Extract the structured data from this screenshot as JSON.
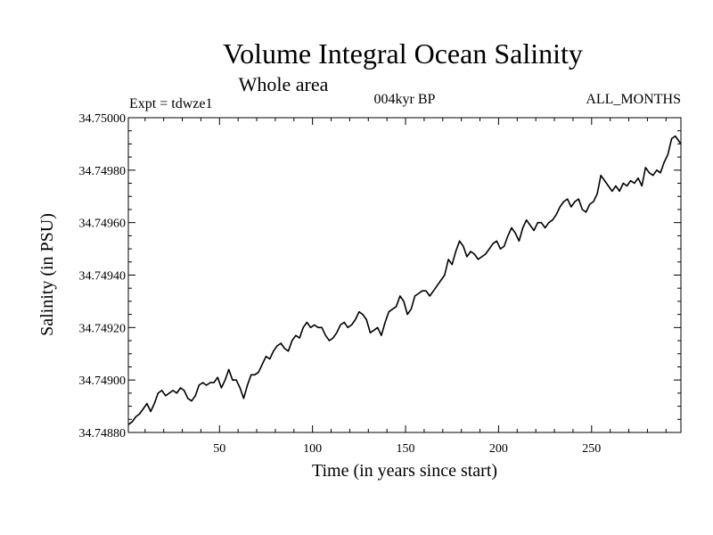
{
  "chart_data": {
    "type": "line",
    "title": "Volume Integral Ocean Salinity",
    "subtitle": "Whole area",
    "experiment": "Expt = tdwze1",
    "period": "004kyr BP",
    "months": "ALL_MONTHS",
    "xlabel": "Time (in years since start)",
    "ylabel": "Salinity (in PSU)",
    "xlim": [
      1,
      298
    ],
    "ylim": [
      34.7488,
      34.75
    ],
    "xticks": [
      50,
      100,
      150,
      200,
      250
    ],
    "xtick_labels": [
      "50",
      "100",
      "150",
      "200",
      "250"
    ],
    "yticks": [
      34.7488,
      34.749,
      34.7492,
      34.7494,
      34.7496,
      34.7498,
      34.75
    ],
    "ytick_labels": [
      "34.74880",
      "34.74900",
      "34.74920",
      "34.74940",
      "34.74960",
      "34.74980",
      "34.75000"
    ],
    "series": [
      {
        "name": "Salinity",
        "points": [
          [
            1,
            34.74883
          ],
          [
            3,
            34.74884
          ],
          [
            5,
            34.74886
          ],
          [
            7,
            34.74887
          ],
          [
            9,
            34.74889
          ],
          [
            11,
            34.74891
          ],
          [
            13,
            34.74888
          ],
          [
            15,
            34.74891
          ],
          [
            17,
            34.74895
          ],
          [
            19,
            34.74896
          ],
          [
            21,
            34.74894
          ],
          [
            23,
            34.74895
          ],
          [
            25,
            34.74896
          ],
          [
            27,
            34.74895
          ],
          [
            29,
            34.74897
          ],
          [
            31,
            34.74896
          ],
          [
            33,
            34.74893
          ],
          [
            35,
            34.74892
          ],
          [
            37,
            34.74894
          ],
          [
            39,
            34.74898
          ],
          [
            41,
            34.74899
          ],
          [
            43,
            34.74898
          ],
          [
            45,
            34.74899
          ],
          [
            47,
            34.74899
          ],
          [
            49,
            34.74901
          ],
          [
            51,
            34.74897
          ],
          [
            53,
            34.749
          ],
          [
            55,
            34.74904
          ],
          [
            57,
            34.749
          ],
          [
            59,
            34.749
          ],
          [
            61,
            34.74897
          ],
          [
            63,
            34.74893
          ],
          [
            65,
            34.74898
          ],
          [
            67,
            34.74902
          ],
          [
            69,
            34.74902
          ],
          [
            71,
            34.74903
          ],
          [
            73,
            34.74906
          ],
          [
            75,
            34.74909
          ],
          [
            77,
            34.74908
          ],
          [
            79,
            34.74911
          ],
          [
            81,
            34.74913
          ],
          [
            83,
            34.74914
          ],
          [
            85,
            34.74912
          ],
          [
            87,
            34.74911
          ],
          [
            89,
            34.74915
          ],
          [
            91,
            34.74917
          ],
          [
            93,
            34.74916
          ],
          [
            95,
            34.7492
          ],
          [
            97,
            34.74922
          ],
          [
            99,
            34.7492
          ],
          [
            101,
            34.74921
          ],
          [
            103,
            34.7492
          ],
          [
            105,
            34.7492
          ],
          [
            107,
            34.74917
          ],
          [
            109,
            34.74915
          ],
          [
            111,
            34.74916
          ],
          [
            113,
            34.74918
          ],
          [
            115,
            34.74921
          ],
          [
            117,
            34.74922
          ],
          [
            119,
            34.7492
          ],
          [
            121,
            34.74921
          ],
          [
            123,
            34.74923
          ],
          [
            125,
            34.74926
          ],
          [
            127,
            34.74925
          ],
          [
            129,
            34.74923
          ],
          [
            131,
            34.74918
          ],
          [
            133,
            34.74919
          ],
          [
            135,
            34.7492
          ],
          [
            137,
            34.74917
          ],
          [
            139,
            34.74922
          ],
          [
            141,
            34.74926
          ],
          [
            143,
            34.74927
          ],
          [
            145,
            34.74928
          ],
          [
            147,
            34.74932
          ],
          [
            149,
            34.7493
          ],
          [
            151,
            34.74925
          ],
          [
            153,
            34.74927
          ],
          [
            155,
            34.74932
          ],
          [
            157,
            34.74933
          ],
          [
            159,
            34.74934
          ],
          [
            161,
            34.74934
          ],
          [
            163,
            34.74932
          ],
          [
            165,
            34.74934
          ],
          [
            167,
            34.74936
          ],
          [
            169,
            34.74938
          ],
          [
            171,
            34.7494
          ],
          [
            173,
            34.74946
          ],
          [
            175,
            34.74944
          ],
          [
            177,
            34.74949
          ],
          [
            179,
            34.74953
          ],
          [
            181,
            34.74951
          ],
          [
            183,
            34.74947
          ],
          [
            185,
            34.74949
          ],
          [
            187,
            34.74948
          ],
          [
            189,
            34.74946
          ],
          [
            191,
            34.74947
          ],
          [
            193,
            34.74948
          ],
          [
            195,
            34.7495
          ],
          [
            197,
            34.74952
          ],
          [
            199,
            34.74953
          ],
          [
            201,
            34.7495
          ],
          [
            203,
            34.74951
          ],
          [
            205,
            34.74955
          ],
          [
            207,
            34.74958
          ],
          [
            209,
            34.74956
          ],
          [
            211,
            34.74953
          ],
          [
            213,
            34.74958
          ],
          [
            215,
            34.74961
          ],
          [
            217,
            34.74959
          ],
          [
            219,
            34.74957
          ],
          [
            221,
            34.7496
          ],
          [
            223,
            34.7496
          ],
          [
            225,
            34.74958
          ],
          [
            227,
            34.7496
          ],
          [
            229,
            34.74961
          ],
          [
            231,
            34.74963
          ],
          [
            233,
            34.74966
          ],
          [
            235,
            34.74968
          ],
          [
            237,
            34.74969
          ],
          [
            239,
            34.74966
          ],
          [
            241,
            34.74968
          ],
          [
            243,
            34.74969
          ],
          [
            245,
            34.74965
          ],
          [
            247,
            34.74964
          ],
          [
            249,
            34.74967
          ],
          [
            251,
            34.74968
          ],
          [
            253,
            34.74971
          ],
          [
            255,
            34.74978
          ],
          [
            257,
            34.74976
          ],
          [
            259,
            34.74974
          ],
          [
            261,
            34.74972
          ],
          [
            263,
            34.74974
          ],
          [
            265,
            34.74972
          ],
          [
            267,
            34.74975
          ],
          [
            269,
            34.74974
          ],
          [
            271,
            34.74976
          ],
          [
            273,
            34.74975
          ],
          [
            275,
            34.74977
          ],
          [
            277,
            34.74974
          ],
          [
            279,
            34.74981
          ],
          [
            281,
            34.74979
          ],
          [
            283,
            34.74978
          ],
          [
            285,
            34.7498
          ],
          [
            287,
            34.74979
          ],
          [
            289,
            34.74983
          ],
          [
            291,
            34.74986
          ],
          [
            293,
            34.74992
          ],
          [
            295,
            34.74993
          ],
          [
            297,
            34.74991
          ],
          [
            298,
            34.7499
          ]
        ]
      }
    ]
  }
}
